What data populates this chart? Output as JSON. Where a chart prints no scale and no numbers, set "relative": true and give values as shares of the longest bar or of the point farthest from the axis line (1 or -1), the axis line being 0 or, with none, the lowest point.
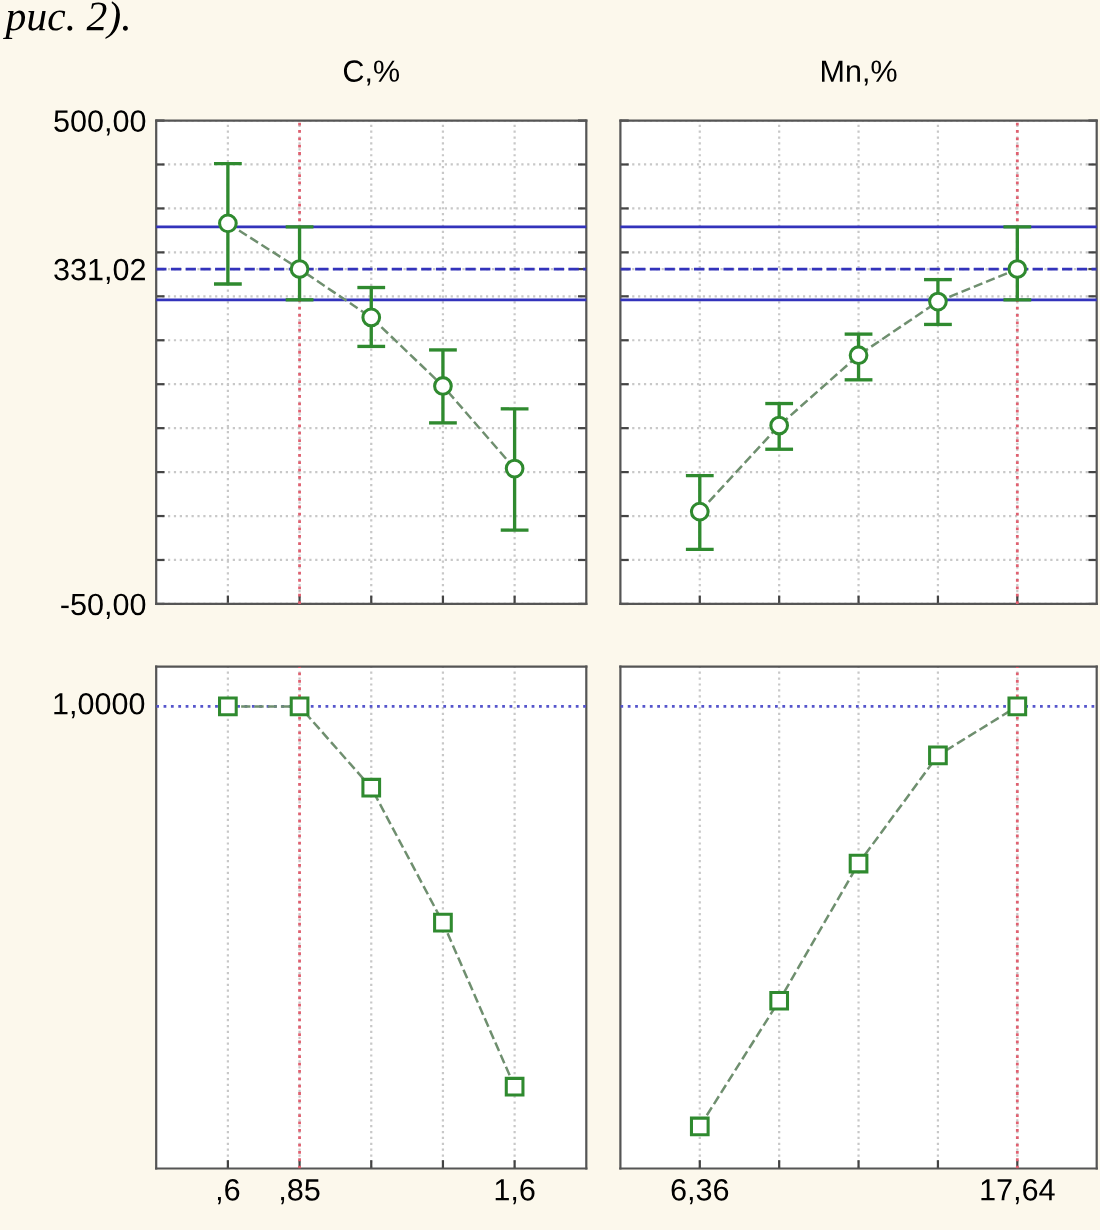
{
  "chart_data": [
    {
      "type": "line",
      "title": "C,%",
      "annotations": [
        "рис. 2)."
      ],
      "categories": [
        ",6",
        ",85",
        null,
        null,
        "1,6"
      ],
      "series": [
        {
          "color": "#2f8a2f",
          "values": [
            383,
            331.02,
            276,
            198,
            104
          ],
          "errors": [
            [
              314,
              451
            ],
            [
              296,
              379
            ],
            [
              243,
              310
            ],
            [
              156,
              239
            ],
            [
              34,
              172
            ]
          ]
        }
      ],
      "ylim": [
        -50,
        500
      ],
      "yticks": [
        {
          "value": -50,
          "label": "-50,00"
        },
        {
          "value": 0,
          "label": null
        },
        {
          "value": 50,
          "label": null
        },
        {
          "value": 100,
          "label": null
        },
        {
          "value": 150,
          "label": null
        },
        {
          "value": 200,
          "label": null
        },
        {
          "value": 250,
          "label": null
        },
        {
          "value": 300,
          "label": null
        },
        {
          "value": 331.02,
          "label": "331,02"
        },
        {
          "value": 350,
          "label": null
        },
        {
          "value": 400,
          "label": null
        },
        {
          "value": 450,
          "label": null
        },
        {
          "value": 500,
          "label": "500,00"
        }
      ],
      "ref_lines": [
        {
          "axis": "y",
          "value": 379,
          "color": "#3333bb",
          "line_style": "solid"
        },
        {
          "axis": "y",
          "value": 331.02,
          "color": "#3333bb",
          "line_style": "dashed"
        },
        {
          "axis": "y",
          "value": 296,
          "color": "#3333bb",
          "line_style": "solid"
        },
        {
          "axis": "x",
          "value": ",85",
          "color": "#e06070",
          "line_style": "dotted"
        }
      ],
      "grid": true,
      "marker": "circle",
      "line_style": "dashed",
      "tick_labels": "y"
    },
    {
      "type": "line",
      "title": "Mn,%",
      "categories": [
        "6,36",
        null,
        null,
        null,
        "17,64"
      ],
      "series": [
        {
          "color": "#2f8a2f",
          "values": [
            55,
            153,
            233,
            294,
            331.02
          ],
          "errors": [
            [
              12,
              96
            ],
            [
              126,
              178
            ],
            [
              205,
              257
            ],
            [
              268,
              319
            ],
            [
              296,
              379
            ]
          ]
        }
      ],
      "ylim": [
        -50,
        500
      ],
      "yticks": [
        {
          "value": -50,
          "label": null
        },
        {
          "value": 0,
          "label": null
        },
        {
          "value": 50,
          "label": null
        },
        {
          "value": 100,
          "label": null
        },
        {
          "value": 150,
          "label": null
        },
        {
          "value": 200,
          "label": null
        },
        {
          "value": 250,
          "label": null
        },
        {
          "value": 300,
          "label": null
        },
        {
          "value": 331.02,
          "label": null
        },
        {
          "value": 350,
          "label": null
        },
        {
          "value": 400,
          "label": null
        },
        {
          "value": 450,
          "label": null
        },
        {
          "value": 500,
          "label": null
        }
      ],
      "ref_lines": [
        {
          "axis": "y",
          "value": 379,
          "color": "#3333bb",
          "line_style": "solid"
        },
        {
          "axis": "y",
          "value": 331.02,
          "color": "#3333bb",
          "line_style": "dashed"
        },
        {
          "axis": "y",
          "value": 296,
          "color": "#3333bb",
          "line_style": "solid"
        },
        {
          "axis": "x",
          "value": "17,64",
          "color": "#e06070",
          "line_style": "dotted"
        }
      ],
      "grid": true,
      "marker": "circle",
      "line_style": "dashed",
      "tick_labels": false
    },
    {
      "type": "line",
      "relative": true,
      "categories": [
        ",6",
        ",85",
        null,
        null,
        "1,6"
      ],
      "series": [
        {
          "color": "#2f8a2f",
          "values": [
            1,
            1,
            0.824,
            0.532,
            0.177
          ]
        }
      ],
      "ref_lines": [
        {
          "axis": "y",
          "value": 1,
          "label": "1,0000",
          "color": "#5555cc",
          "line_style": "dotted"
        },
        {
          "axis": "x",
          "value": ",85",
          "color": "#e06070",
          "line_style": "dotted"
        }
      ],
      "grid": "x",
      "marker": "square",
      "line_style": "dashed",
      "tick_labels": "x"
    },
    {
      "type": "line",
      "relative": true,
      "categories": [
        "6,36",
        null,
        null,
        null,
        "17,64"
      ],
      "series": [
        {
          "color": "#2f8a2f",
          "values": [
            0.091,
            0.363,
            0.66,
            0.894,
            1
          ]
        }
      ],
      "ref_lines": [
        {
          "axis": "y",
          "value": 1,
          "color": "#5555cc",
          "line_style": "dotted"
        },
        {
          "axis": "x",
          "value": "17,64",
          "color": "#e06070",
          "line_style": "dotted"
        }
      ],
      "grid": "x",
      "marker": "square",
      "line_style": "dashed",
      "tick_labels": "x"
    }
  ]
}
